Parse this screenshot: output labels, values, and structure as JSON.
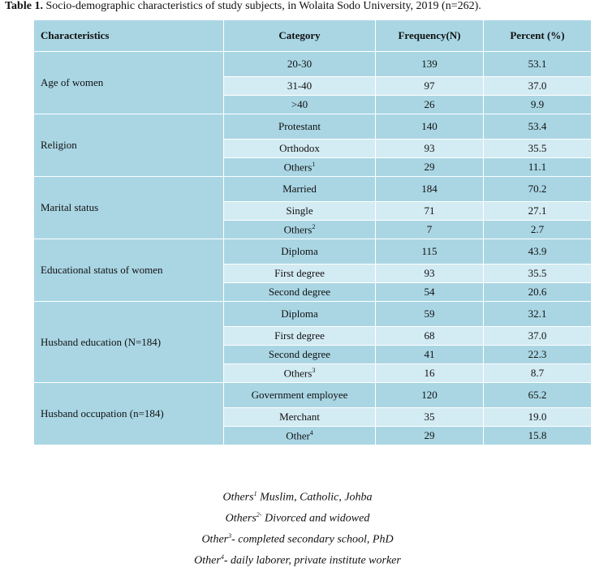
{
  "caption": {
    "bold": "Table 1.",
    "text": " Socio-demographic characteristics of study subjects, in Wolaita Sodo University, 2019 (n=262)."
  },
  "headers": [
    "Characteristics",
    "Category",
    "Frequency(N)",
    "Percent (%)"
  ],
  "groups": [
    {
      "label": "Age of women",
      "rows": [
        {
          "category": "20-30",
          "sup": "",
          "frequency": "139",
          "percent": "53.1"
        },
        {
          "category": "31-40",
          "sup": "",
          "frequency": "97",
          "percent": "37.0"
        },
        {
          "category": ">40",
          "sup": "",
          "frequency": "26",
          "percent": "9.9"
        }
      ]
    },
    {
      "label": "Religion",
      "rows": [
        {
          "category": "Protestant",
          "sup": "",
          "frequency": "140",
          "percent": "53.4"
        },
        {
          "category": "Orthodox",
          "sup": "",
          "frequency": "93",
          "percent": "35.5"
        },
        {
          "category": "Others",
          "sup": "1",
          "frequency": "29",
          "percent": "11.1"
        }
      ]
    },
    {
      "label": "Marital status",
      "rows": [
        {
          "category": "Married",
          "sup": "",
          "frequency": "184",
          "percent": "70.2"
        },
        {
          "category": "Single",
          "sup": "",
          "frequency": "71",
          "percent": "27.1"
        },
        {
          "category": "Others",
          "sup": "2",
          "frequency": "7",
          "percent": "2.7"
        }
      ]
    },
    {
      "label": "Educational status of women",
      "rows": [
        {
          "category": "Diploma",
          "sup": "",
          "frequency": "115",
          "percent": "43.9"
        },
        {
          "category": "First degree",
          "sup": "",
          "frequency": "93",
          "percent": "35.5"
        },
        {
          "category": "Second degree",
          "sup": "",
          "frequency": "54",
          "percent": "20.6"
        }
      ]
    },
    {
      "label": "Husband education (N=184)",
      "rows": [
        {
          "category": "Diploma",
          "sup": "",
          "frequency": "59",
          "percent": "32.1"
        },
        {
          "category": "First degree",
          "sup": "",
          "frequency": "68",
          "percent": "37.0"
        },
        {
          "category": "Second degree",
          "sup": "",
          "frequency": "41",
          "percent": "22.3"
        },
        {
          "category": "Others",
          "sup": "3",
          "frequency": "16",
          "percent": "8.7"
        }
      ]
    },
    {
      "label": "Husband occupation (n=184)",
      "rows": [
        {
          "category": "Government employee",
          "sup": "",
          "frequency": "120",
          "percent": "65.2"
        },
        {
          "category": "Merchant",
          "sup": "",
          "frequency": "35",
          "percent": "19.0"
        },
        {
          "category": "Other",
          "sup": "4",
          "frequency": "29",
          "percent": "15.8"
        }
      ]
    }
  ],
  "footnotes": [
    {
      "word": "Others",
      "sup": "1",
      "text": " Muslim, Catholic, Johba"
    },
    {
      "word": "Others",
      "sup": "2-",
      "text": " Divorced and widowed"
    },
    {
      "word": "Other",
      "sup": "3",
      "text": "- completed secondary school, PhD"
    },
    {
      "word": "Other",
      "sup": "4",
      "text": "- daily laborer, private institute worker"
    }
  ],
  "colors": {
    "dark_row": "#aad6e4",
    "light_row": "#d3ebf3",
    "border": "#ffffff"
  }
}
